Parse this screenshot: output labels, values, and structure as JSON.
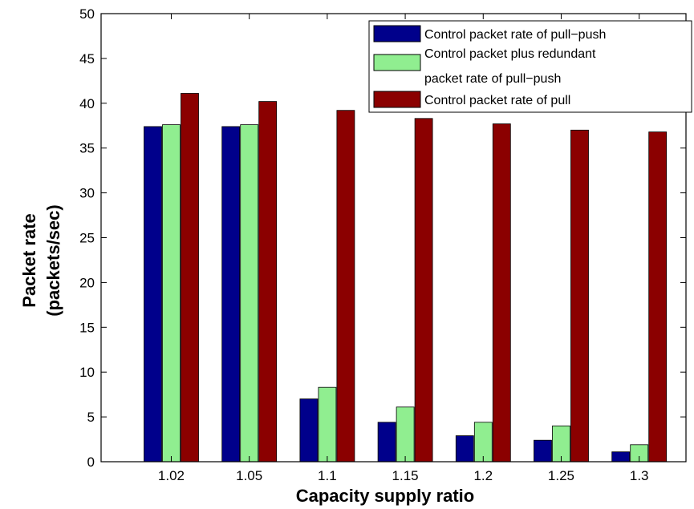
{
  "chart_data": {
    "type": "bar",
    "categories": [
      "1.02",
      "1.05",
      "1.1",
      "1.15",
      "1.2",
      "1.25",
      "1.3"
    ],
    "series": [
      {
        "name": "Control packet rate of pull−push",
        "color": "#00008b",
        "values": [
          37.4,
          37.4,
          7.0,
          4.4,
          2.9,
          2.4,
          1.1
        ]
      },
      {
        "name_lines": [
          "Control packet plus redundant",
          "packet rate of pull−push"
        ],
        "color": "#90ee90",
        "values": [
          37.6,
          37.6,
          8.3,
          6.1,
          4.4,
          4.0,
          1.9
        ]
      },
      {
        "name": "Control packet rate of pull",
        "color": "#8b0000",
        "values": [
          41.1,
          40.2,
          39.2,
          38.3,
          37.7,
          37.0,
          36.8
        ]
      }
    ],
    "xlabel": "Capacity supply ratio",
    "ylabel_lines": [
      "Packet rate",
      "(packets/sec)"
    ],
    "ylim": [
      0,
      50
    ],
    "yticks": [
      "0",
      "5",
      "10",
      "15",
      "20",
      "25",
      "30",
      "35",
      "40",
      "45",
      "50"
    ],
    "grid": false,
    "legend_position": "top-right"
  }
}
